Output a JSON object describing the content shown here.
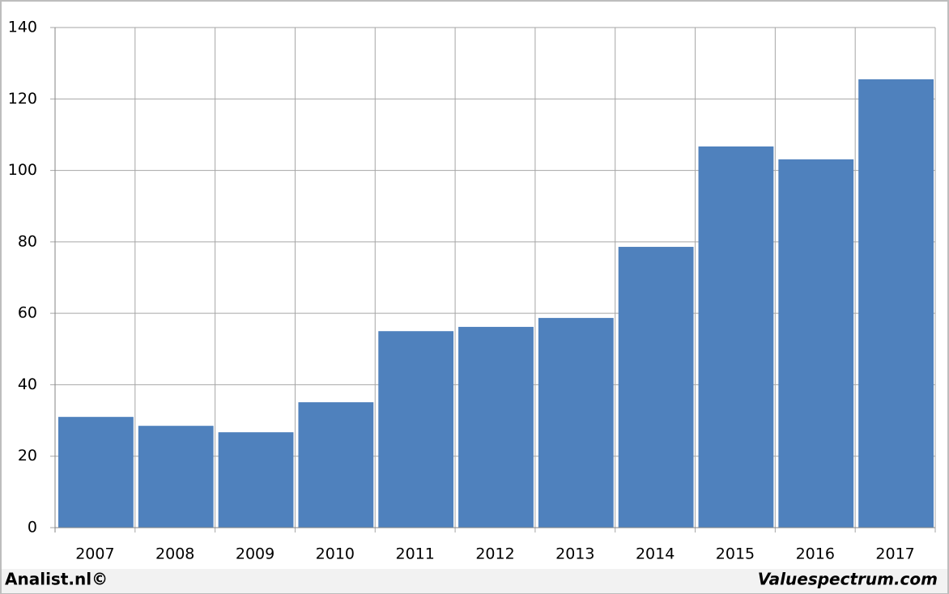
{
  "chart_data": {
    "type": "bar",
    "categories": [
      "2007",
      "2008",
      "2009",
      "2010",
      "2011",
      "2012",
      "2013",
      "2014",
      "2015",
      "2016",
      "2017"
    ],
    "values": [
      31.0,
      28.5,
      26.7,
      35.1,
      55.0,
      56.2,
      58.7,
      78.6,
      106.7,
      103.1,
      125.5
    ],
    "color": "#4f81bd",
    "ylim": [
      0,
      140
    ],
    "yticks": [
      0,
      20,
      40,
      60,
      80,
      100,
      120,
      140
    ],
    "grid": true
  },
  "footer": {
    "left": "Analist.nl©",
    "right": "Valuespectrum.com"
  }
}
